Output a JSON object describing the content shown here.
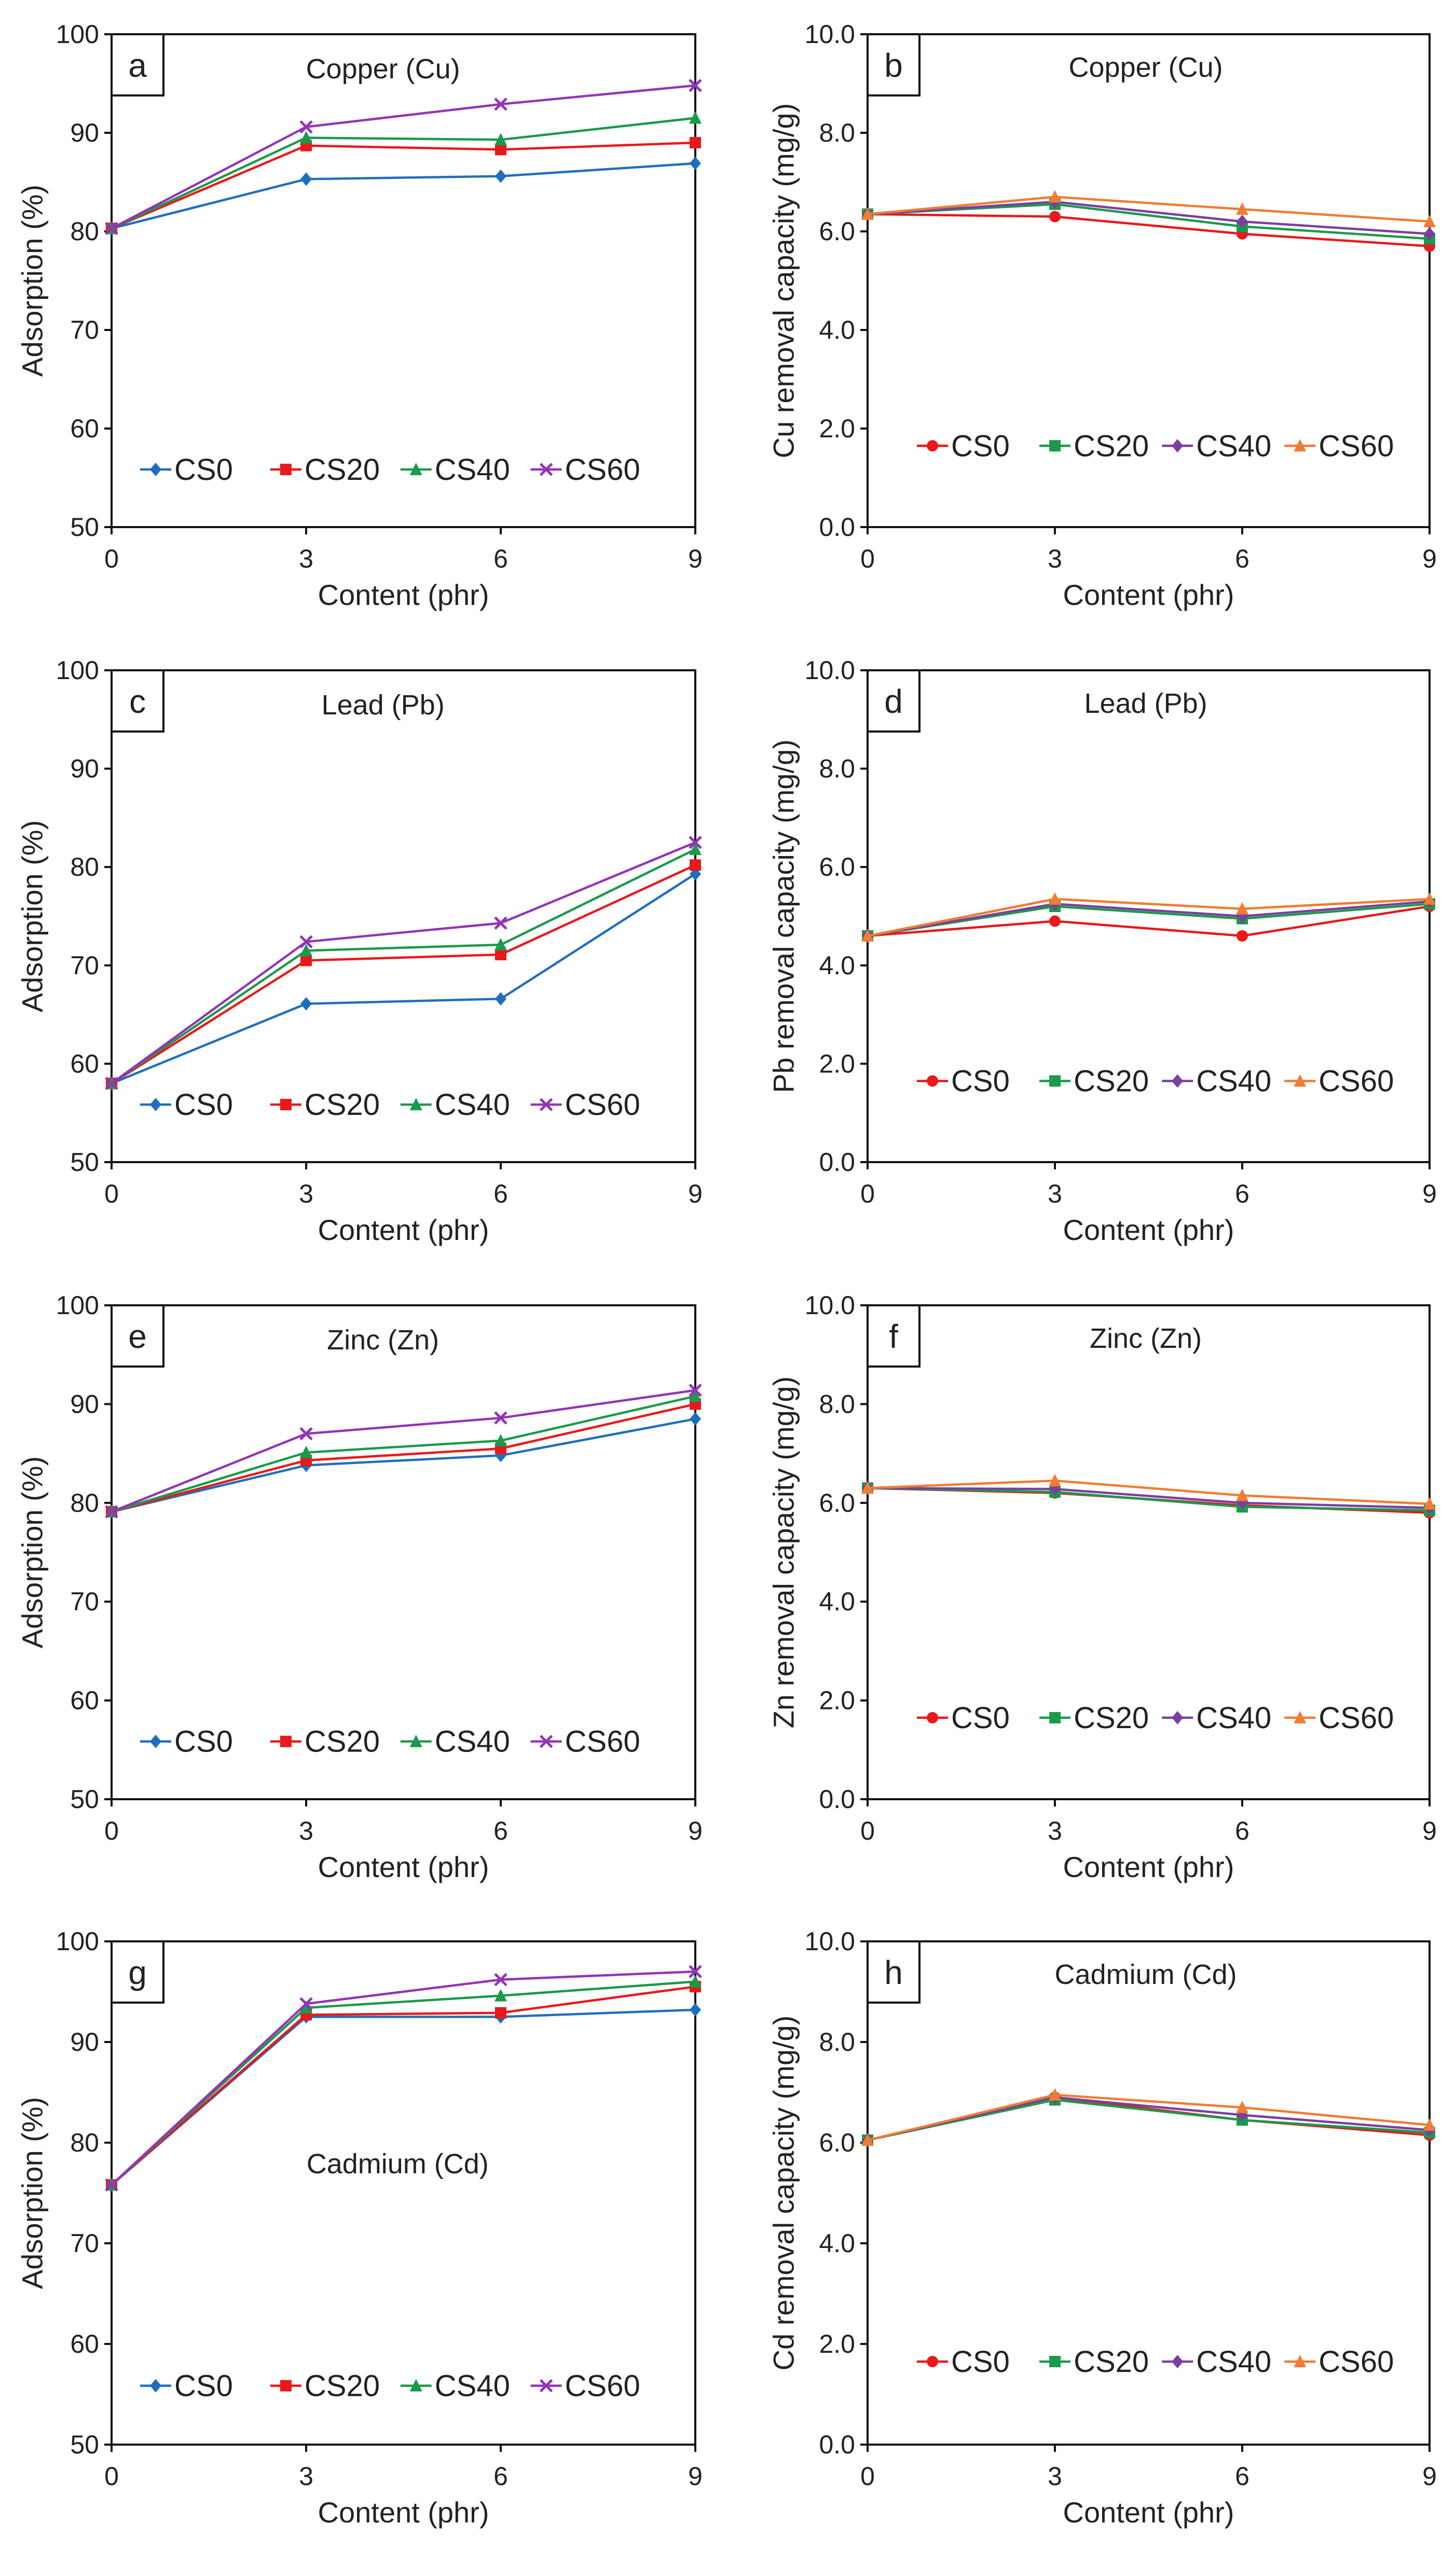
{
  "colors": {
    "CS0": "#1f6fbf",
    "CS20": "#e8191b",
    "CS40": "#1a9a4a",
    "CS60": "#9334b8",
    "CS60_orange": "#ef7d33"
  },
  "chart_data": [
    {
      "id": "a",
      "type": "line",
      "panel_letter": "a",
      "title": "Copper (Cu)",
      "xlabel": "Content (phr)",
      "ylabel": "Adsorption (%)",
      "x": [
        0,
        3,
        6,
        9
      ],
      "xlim": [
        0,
        9
      ],
      "ylim": [
        50,
        100
      ],
      "yticks": [
        "50",
        "60",
        "70",
        "80",
        "90",
        "100"
      ],
      "xticks": [
        "0",
        "3",
        "6",
        "9"
      ],
      "series": [
        {
          "name": "CS0",
          "values": [
            80.3,
            85.3,
            85.6,
            86.9
          ],
          "color": "#1f6fbf",
          "marker": "diamond"
        },
        {
          "name": "CS20",
          "values": [
            80.3,
            88.7,
            88.3,
            89.0
          ],
          "color": "#e8191b",
          "marker": "square"
        },
        {
          "name": "CS40",
          "values": [
            80.3,
            89.5,
            89.3,
            91.5
          ],
          "color": "#1a9a4a",
          "marker": "triangle"
        },
        {
          "name": "CS60",
          "values": [
            80.3,
            90.6,
            92.9,
            94.8
          ],
          "color": "#9334b8",
          "marker": "x"
        }
      ]
    },
    {
      "id": "b",
      "type": "line",
      "panel_letter": "b",
      "title": "Copper (Cu)",
      "xlabel": "Content (phr)",
      "ylabel": "Cu removal capacity (mg/g)",
      "x": [
        0,
        3,
        6,
        9
      ],
      "xlim": [
        0,
        9
      ],
      "ylim": [
        0,
        10
      ],
      "yticks": [
        "0.0",
        "2.0",
        "4.0",
        "6.0",
        "8.0",
        "10.0"
      ],
      "xticks": [
        "0",
        "3",
        "6",
        "9"
      ],
      "series": [
        {
          "name": "CS0",
          "values": [
            6.35,
            6.3,
            5.95,
            5.7
          ],
          "color": "#e8191b",
          "marker": "circle"
        },
        {
          "name": "CS20",
          "values": [
            6.35,
            6.55,
            6.1,
            5.85
          ],
          "color": "#1a9a4a",
          "marker": "square"
        },
        {
          "name": "CS40",
          "values": [
            6.35,
            6.6,
            6.2,
            5.95
          ],
          "color": "#7a3fa0",
          "marker": "diamond"
        },
        {
          "name": "CS60",
          "values": [
            6.35,
            6.7,
            6.45,
            6.2
          ],
          "color": "#ef7d33",
          "marker": "triangle"
        }
      ]
    },
    {
      "id": "c",
      "type": "line",
      "panel_letter": "c",
      "title": "Lead (Pb)",
      "xlabel": "Content (phr)",
      "ylabel": "Adsorption (%)",
      "x": [
        0,
        3,
        6,
        9
      ],
      "xlim": [
        0,
        9
      ],
      "ylim": [
        50,
        100
      ],
      "yticks": [
        "50",
        "60",
        "70",
        "80",
        "90",
        "100"
      ],
      "xticks": [
        "0",
        "3",
        "6",
        "9"
      ],
      "series": [
        {
          "name": "CS0",
          "values": [
            58.0,
            66.1,
            66.6,
            79.3
          ],
          "color": "#1f6fbf",
          "marker": "diamond"
        },
        {
          "name": "CS20",
          "values": [
            58.0,
            70.5,
            71.1,
            80.2
          ],
          "color": "#e8191b",
          "marker": "square"
        },
        {
          "name": "CS40",
          "values": [
            58.0,
            71.5,
            72.1,
            81.8
          ],
          "color": "#1a9a4a",
          "marker": "triangle"
        },
        {
          "name": "CS60",
          "values": [
            58.0,
            72.4,
            74.3,
            82.5
          ],
          "color": "#9334b8",
          "marker": "x"
        }
      ]
    },
    {
      "id": "d",
      "type": "line",
      "panel_letter": "d",
      "title": "Lead (Pb)",
      "xlabel": "Content (phr)",
      "ylabel": "Pb removal capacity (mg/g)",
      "x": [
        0,
        3,
        6,
        9
      ],
      "xlim": [
        0,
        9
      ],
      "ylim": [
        0,
        10
      ],
      "yticks": [
        "0.0",
        "2.0",
        "4.0",
        "6.0",
        "8.0",
        "10.0"
      ],
      "xticks": [
        "0",
        "3",
        "6",
        "9"
      ],
      "series": [
        {
          "name": "CS0",
          "values": [
            4.6,
            4.9,
            4.6,
            5.2
          ],
          "color": "#e8191b",
          "marker": "circle"
        },
        {
          "name": "CS20",
          "values": [
            4.6,
            5.2,
            4.95,
            5.25
          ],
          "color": "#1a9a4a",
          "marker": "square"
        },
        {
          "name": "CS40",
          "values": [
            4.6,
            5.25,
            5.0,
            5.3
          ],
          "color": "#7a3fa0",
          "marker": "diamond"
        },
        {
          "name": "CS60",
          "values": [
            4.6,
            5.35,
            5.15,
            5.35
          ],
          "color": "#ef7d33",
          "marker": "triangle"
        }
      ]
    },
    {
      "id": "e",
      "type": "line",
      "panel_letter": "e",
      "title": "Zinc (Zn)",
      "xlabel": "Content (phr)",
      "ylabel": "Adsorption (%)",
      "x": [
        0,
        3,
        6,
        9
      ],
      "xlim": [
        0,
        9
      ],
      "ylim": [
        50,
        100
      ],
      "yticks": [
        "50",
        "60",
        "70",
        "80",
        "90",
        "100"
      ],
      "xticks": [
        "0",
        "3",
        "6",
        "9"
      ],
      "series": [
        {
          "name": "CS0",
          "values": [
            79.1,
            83.8,
            84.8,
            88.5
          ],
          "color": "#1f6fbf",
          "marker": "diamond"
        },
        {
          "name": "CS20",
          "values": [
            79.1,
            84.3,
            85.5,
            90.0
          ],
          "color": "#e8191b",
          "marker": "square"
        },
        {
          "name": "CS40",
          "values": [
            79.1,
            85.1,
            86.3,
            90.8
          ],
          "color": "#1a9a4a",
          "marker": "triangle"
        },
        {
          "name": "CS60",
          "values": [
            79.1,
            87.0,
            88.6,
            91.4
          ],
          "color": "#9334b8",
          "marker": "x"
        }
      ]
    },
    {
      "id": "f",
      "type": "line",
      "panel_letter": "f",
      "title": "Zinc (Zn)",
      "xlabel": "Content (phr)",
      "ylabel": "Zn removal capacity (mg/g)",
      "x": [
        0,
        3,
        6,
        9
      ],
      "xlim": [
        0,
        9
      ],
      "ylim": [
        0,
        10
      ],
      "yticks": [
        "0.0",
        "2.0",
        "4.0",
        "6.0",
        "8.0",
        "10.0"
      ],
      "xticks": [
        "0",
        "3",
        "6",
        "9"
      ],
      "series": [
        {
          "name": "CS0",
          "values": [
            6.3,
            6.2,
            5.95,
            5.8
          ],
          "color": "#e8191b",
          "marker": "circle"
        },
        {
          "name": "CS20",
          "values": [
            6.3,
            6.22,
            5.92,
            5.85
          ],
          "color": "#1a9a4a",
          "marker": "square"
        },
        {
          "name": "CS40",
          "values": [
            6.3,
            6.28,
            6.0,
            5.9
          ],
          "color": "#7a3fa0",
          "marker": "diamond"
        },
        {
          "name": "CS60",
          "values": [
            6.3,
            6.45,
            6.15,
            5.98
          ],
          "color": "#ef7d33",
          "marker": "triangle"
        }
      ]
    },
    {
      "id": "g",
      "type": "line",
      "panel_letter": "g",
      "title": "Cadmium (Cd)",
      "xlabel": "Content (phr)",
      "ylabel": "Adsorption (%)",
      "x": [
        0,
        3,
        6,
        9
      ],
      "xlim": [
        0,
        9
      ],
      "ylim": [
        50,
        100
      ],
      "yticks": [
        "50",
        "60",
        "70",
        "80",
        "90",
        "100"
      ],
      "xticks": [
        "0",
        "3",
        "6",
        "9"
      ],
      "series": [
        {
          "name": "CS0",
          "values": [
            75.8,
            92.5,
            92.5,
            93.2
          ],
          "color": "#1f6fbf",
          "marker": "diamond"
        },
        {
          "name": "CS20",
          "values": [
            75.8,
            92.7,
            92.9,
            95.5
          ],
          "color": "#e8191b",
          "marker": "square"
        },
        {
          "name": "CS40",
          "values": [
            75.8,
            93.4,
            94.6,
            96.0
          ],
          "color": "#1a9a4a",
          "marker": "triangle"
        },
        {
          "name": "CS60",
          "values": [
            75.8,
            93.8,
            96.2,
            97.0
          ],
          "color": "#9334b8",
          "marker": "x"
        }
      ]
    },
    {
      "id": "h",
      "type": "line",
      "panel_letter": "h",
      "title": "Cadmium (Cd)",
      "xlabel": "Content (phr)",
      "ylabel": "Cd removal capacity (mg/g)",
      "x": [
        0,
        3,
        6,
        9
      ],
      "xlim": [
        0,
        9
      ],
      "ylim": [
        0,
        10
      ],
      "yticks": [
        "0.0",
        "2.0",
        "4.0",
        "6.0",
        "8.0",
        "10.0"
      ],
      "xticks": [
        "0",
        "3",
        "6",
        "9"
      ],
      "series": [
        {
          "name": "CS0",
          "values": [
            6.05,
            6.9,
            6.45,
            6.15
          ],
          "color": "#e8191b",
          "marker": "circle"
        },
        {
          "name": "CS20",
          "values": [
            6.05,
            6.85,
            6.45,
            6.2
          ],
          "color": "#1a9a4a",
          "marker": "square"
        },
        {
          "name": "CS40",
          "values": [
            6.05,
            6.9,
            6.55,
            6.25
          ],
          "color": "#7a3fa0",
          "marker": "diamond"
        },
        {
          "name": "CS60",
          "values": [
            6.05,
            6.95,
            6.7,
            6.35
          ],
          "color": "#ef7d33",
          "marker": "triangle"
        }
      ]
    }
  ]
}
